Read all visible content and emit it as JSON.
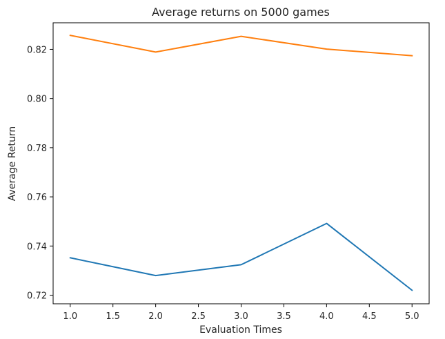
{
  "chart_data": {
    "type": "line",
    "title": "Average returns on 5000 games",
    "xlabel": "Evaluation Times",
    "ylabel": "Average Return",
    "xlim": [
      0.8,
      5.2
    ],
    "ylim": [
      0.7165,
      0.8308
    ],
    "x_ticks": [
      1.0,
      1.5,
      2.0,
      2.5,
      3.0,
      3.5,
      4.0,
      4.5,
      5.0
    ],
    "x_tick_labels": [
      "1.0",
      "1.5",
      "2.0",
      "2.5",
      "3.0",
      "3.5",
      "4.0",
      "4.5",
      "5.0"
    ],
    "y_ticks": [
      0.72,
      0.74,
      0.76,
      0.78,
      0.8,
      0.82
    ],
    "y_tick_labels": [
      "0.72",
      "0.74",
      "0.76",
      "0.78",
      "0.80",
      "0.82"
    ],
    "grid": false,
    "x": [
      1,
      2,
      3,
      4,
      5
    ],
    "series": [
      {
        "values": [
          0.7352,
          0.728,
          0.7324,
          0.7492,
          0.722
        ],
        "color": "#1f77b4"
      },
      {
        "values": [
          0.8257,
          0.8189,
          0.8253,
          0.8201,
          0.8174
        ],
        "color": "#ff7f0e"
      }
    ]
  }
}
